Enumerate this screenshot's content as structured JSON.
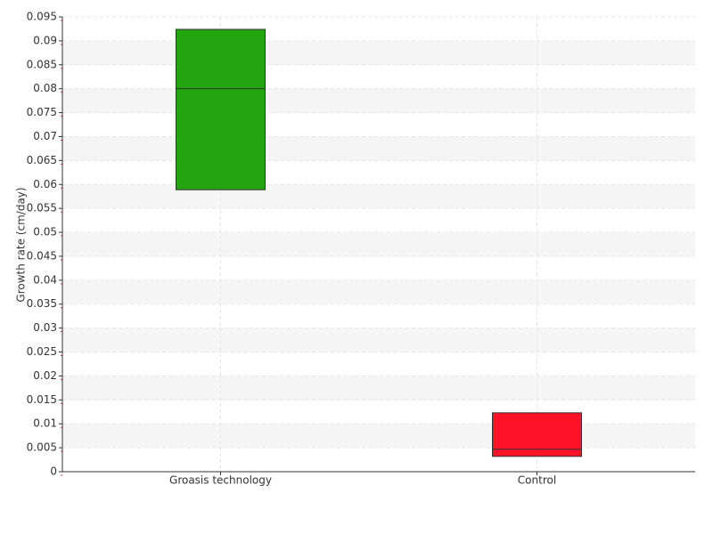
{
  "chart_data": {
    "type": "box",
    "y_label": "Growth rate (cm/day)",
    "categories": [
      "Groasis technology",
      "Control"
    ],
    "low": [
      0.0589,
      0.0032
    ],
    "median": [
      0.08,
      0.0047
    ],
    "high": [
      0.0924,
      0.0123
    ],
    "colors": [
      "#22a50f",
      "#ff1128"
    ],
    "ylim": [
      0,
      0.095
    ],
    "yticks": [
      0,
      0.005,
      0.01,
      0.015,
      0.02,
      0.025,
      0.03,
      0.035,
      0.04,
      0.045,
      0.05,
      0.055,
      0.06,
      0.065,
      0.07,
      0.075,
      0.08,
      0.085,
      0.09,
      0.095
    ],
    "grid": true
  }
}
